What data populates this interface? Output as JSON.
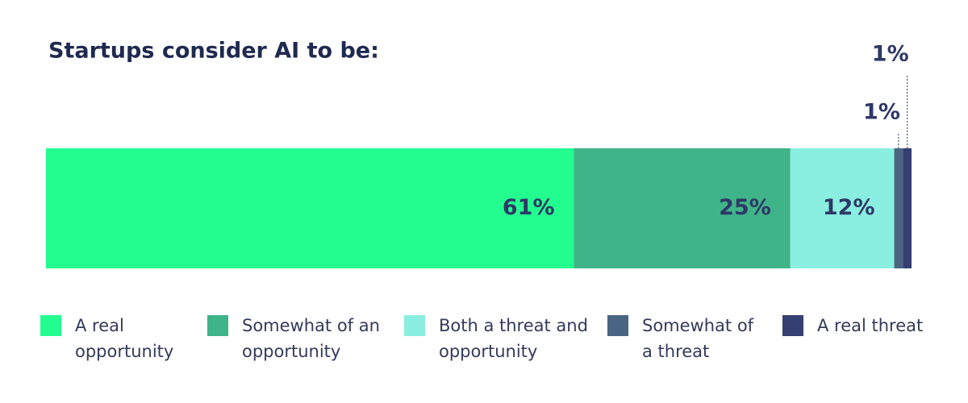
{
  "chart_data": {
    "type": "stacked-bar-horizontal",
    "title": "Startups consider AI to be:",
    "series": [
      {
        "name": "A real opportunity",
        "color": "#23fd8f",
        "values": [
          61
        ],
        "value_labels": [
          "61%"
        ]
      },
      {
        "name": "Somewhat of an opportunity",
        "color": "#3fb489",
        "values": [
          25
        ],
        "value_labels": [
          "25%"
        ]
      },
      {
        "name": "Both a threat and opportunity",
        "color": "#8aefe0",
        "values": [
          12
        ],
        "value_labels": [
          "12%"
        ]
      },
      {
        "name": "Somewhat of a threat",
        "color": "#4a6582",
        "values": [
          1
        ],
        "value_labels": [
          "1%"
        ]
      },
      {
        "name": "A real threat",
        "color": "#353f72",
        "values": [
          1
        ],
        "value_labels": [
          "1%"
        ]
      }
    ]
  }
}
